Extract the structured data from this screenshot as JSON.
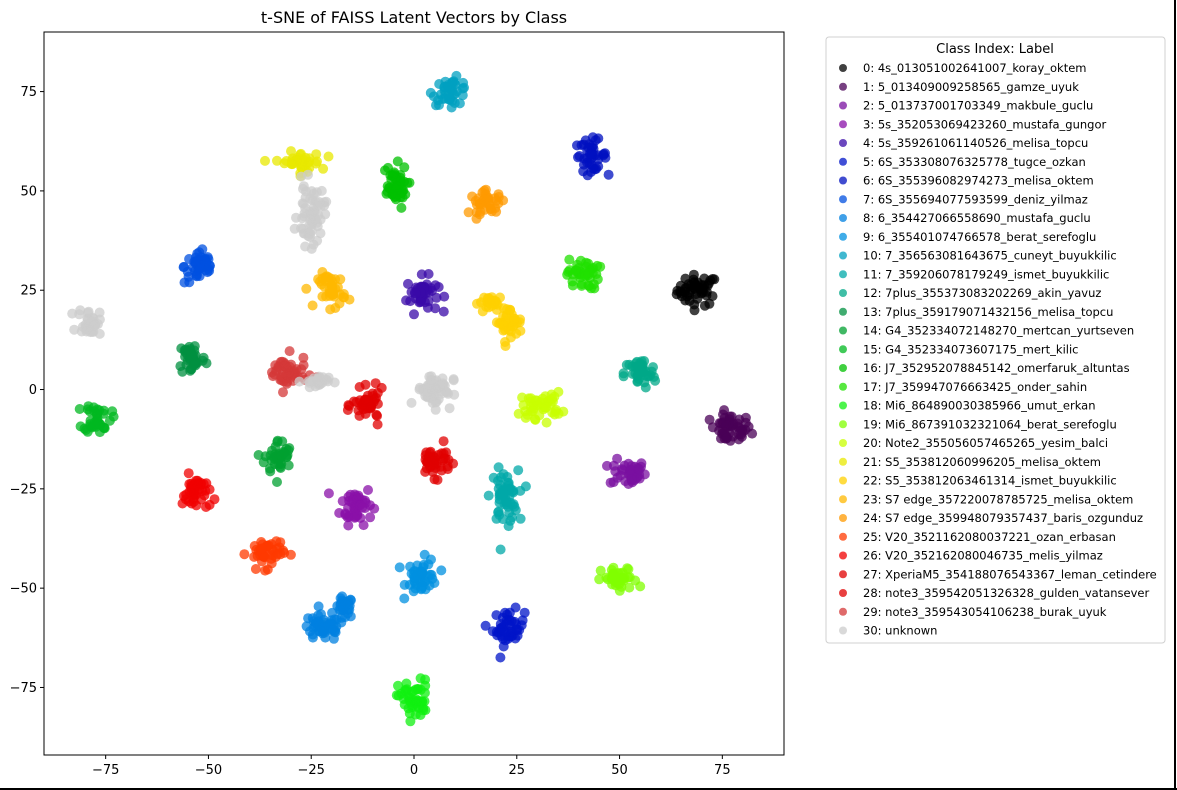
{
  "chart_data": {
    "type": "scatter",
    "title": "t-SNE of FAISS Latent Vectors by Class",
    "xlabel": "",
    "ylabel": "",
    "xlim": [
      -90,
      90
    ],
    "ylim": [
      -92,
      90
    ],
    "xticks": [
      -75,
      -50,
      -25,
      0,
      25,
      50,
      75
    ],
    "yticks": [
      -75,
      -50,
      -25,
      0,
      25,
      50,
      75
    ],
    "xtick_labels": [
      "−75",
      "−50",
      "−25",
      "0",
      "25",
      "50",
      "75"
    ],
    "ytick_labels": [
      "−75",
      "−50",
      "−25",
      "0",
      "25",
      "50",
      "75"
    ],
    "grid": false,
    "legend": {
      "title": "Class Index: Label",
      "placement": "outside-right-top"
    },
    "series": [
      {
        "name": "0: 4s_013051002641007_koray_oktem",
        "color": "#000000",
        "clusters": [
          [
            69,
            25,
            4.5,
            3.5
          ]
        ]
      },
      {
        "name": "1: 5_013409009258565_gamze_uyuk",
        "color": "#4a0057",
        "clusters": [
          [
            77,
            -10,
            4.5,
            3.5
          ]
        ]
      },
      {
        "name": "2: 5_013737001703349_makbule_guclu",
        "color": "#7a10a0",
        "clusters": [
          [
            52,
            -21,
            4,
            3
          ]
        ]
      },
      {
        "name": "3: 5s_352053069423260_mustafa_gungor",
        "color": "#8a10a8",
        "clusters": [
          [
            -14,
            -29,
            3.5,
            4.5
          ]
        ]
      },
      {
        "name": "4: 5s_359261061140526_melisa_topcu",
        "color": "#3a0aa8",
        "clusters": [
          [
            2,
            24,
            3.5,
            4
          ]
        ]
      },
      {
        "name": "5: 6S_353308076325778_tugce_ozkan",
        "color": "#0014c8",
        "clusters": [
          [
            23,
            -60,
            3.5,
            4
          ]
        ]
      },
      {
        "name": "6: 6S_355396082974273_melisa_oktem",
        "color": "#0010c0",
        "clusters": [
          [
            43,
            59,
            3.5,
            3.5
          ]
        ]
      },
      {
        "name": "7: 6S_355694077593599_deniz_yilmaz",
        "color": "#0050e0",
        "clusters": [
          [
            -52,
            31,
            3.5,
            4
          ]
        ]
      },
      {
        "name": "8: 6_354427066558690_mustafa_guclu",
        "color": "#0080e0",
        "clusters": [
          [
            -22,
            -60,
            5,
            3
          ],
          [
            -17,
            -55,
            2,
            2.5
          ]
        ]
      },
      {
        "name": "9: 6_355401074766578_berat_serefoglu",
        "color": "#0090e0",
        "clusters": [
          [
            2,
            -47,
            3.5,
            4
          ]
        ]
      },
      {
        "name": "10: 7_356563081643675_cuneyt_buyukkilic",
        "color": "#00a0c0",
        "clusters": [
          [
            9,
            75,
            4,
            3
          ]
        ]
      },
      {
        "name": "11: 7_359206078179249_ismet_buyukkilic",
        "color": "#00a8a8",
        "clusters": [
          [
            22,
            -27,
            3,
            6
          ]
        ]
      },
      {
        "name": "12: 7plus_355373083202269_akin_yavuz",
        "color": "#00a888",
        "clusters": [
          [
            55,
            4,
            3.5,
            3.5
          ]
        ]
      },
      {
        "name": "13: 7plus_359179071432156_melisa_topcu",
        "color": "#009040",
        "clusters": [
          [
            -54,
            8,
            3,
            4
          ]
        ]
      },
      {
        "name": "14: G4_352334072148270_mertcan_yurtseven",
        "color": "#00a030",
        "clusters": [
          [
            -33,
            -17,
            3,
            4
          ]
        ]
      },
      {
        "name": "15: G4_352334073607175_mert_kilic",
        "color": "#00b820",
        "clusters": [
          [
            -77,
            -7,
            3,
            3.5
          ]
        ]
      },
      {
        "name": "16: J7_352952078845142_omerfaruk_altuntas",
        "color": "#00c000",
        "clusters": [
          [
            -5,
            51,
            3,
            5
          ]
        ]
      },
      {
        "name": "17: J7_359947076663425_onder_sahin",
        "color": "#20e000",
        "clusters": [
          [
            41,
            29,
            3.5,
            3.5
          ]
        ]
      },
      {
        "name": "18: Mi6_864890030385966_umut_erkan",
        "color": "#10f010",
        "clusters": [
          [
            0,
            -78,
            3.5,
            4.5
          ]
        ]
      },
      {
        "name": "19: Mi6_867391032321064_berat_serefoglu",
        "color": "#80ff00",
        "clusters": [
          [
            50,
            -48,
            4,
            3
          ]
        ]
      },
      {
        "name": "20: Note2_355056057465265_yesim_balci",
        "color": "#c8ff00",
        "clusters": [
          [
            31,
            -4,
            4.5,
            3
          ]
        ]
      },
      {
        "name": "21: S5_353812060996205_melisa_oktem",
        "color": "#e8e800",
        "clusters": [
          [
            -28,
            57,
            5,
            2.5
          ]
        ]
      },
      {
        "name": "22: S5_353812063461314_ismet_buyukkilic",
        "color": "#ffd000",
        "clusters": [
          [
            23,
            17,
            3,
            3.5
          ],
          [
            19,
            22,
            3,
            1.5
          ]
        ]
      },
      {
        "name": "23: S7 edge_357220078785725_melisa_oktem",
        "color": "#ffb800",
        "clusters": [
          [
            -20,
            25,
            3,
            4
          ]
        ]
      },
      {
        "name": "24: S7 edge_359948079357437_baris_ozgunduz",
        "color": "#ff9a00",
        "clusters": [
          [
            18,
            47,
            4,
            2.5
          ]
        ]
      },
      {
        "name": "25: V20_3521162080037221_ozan_erbasan",
        "color": "#ff3a00",
        "clusters": [
          [
            -36,
            -41,
            4,
            3.5
          ]
        ]
      },
      {
        "name": "26: V20_352162080046735_melis_yilmaz",
        "color": "#f00000",
        "clusters": [
          [
            -53,
            -26,
            3,
            4
          ]
        ]
      },
      {
        "name": "27: XperiaM5_354188076543367_leman_cetindere",
        "color": "#e00000",
        "clusters": [
          [
            5,
            -18,
            3.5,
            3.5
          ]
        ]
      },
      {
        "name": "28: note3_359542051326328_gulden_vatansever",
        "color": "#e00000",
        "clusters": [
          [
            -11,
            -4,
            3.5,
            3.5
          ]
        ]
      },
      {
        "name": "29: note3_359543054106238_burak_uyuk",
        "color": "#d43838",
        "clusters": [
          [
            -31,
            4,
            4.5,
            4
          ]
        ]
      },
      {
        "name": "30: unknown",
        "color": "#cccccc",
        "clusters": [
          [
            -25,
            44,
            3,
            7
          ],
          [
            -79,
            17,
            2.5,
            3
          ],
          [
            5,
            0,
            4,
            4
          ],
          [
            -24,
            2,
            3,
            1.5
          ]
        ]
      }
    ]
  }
}
